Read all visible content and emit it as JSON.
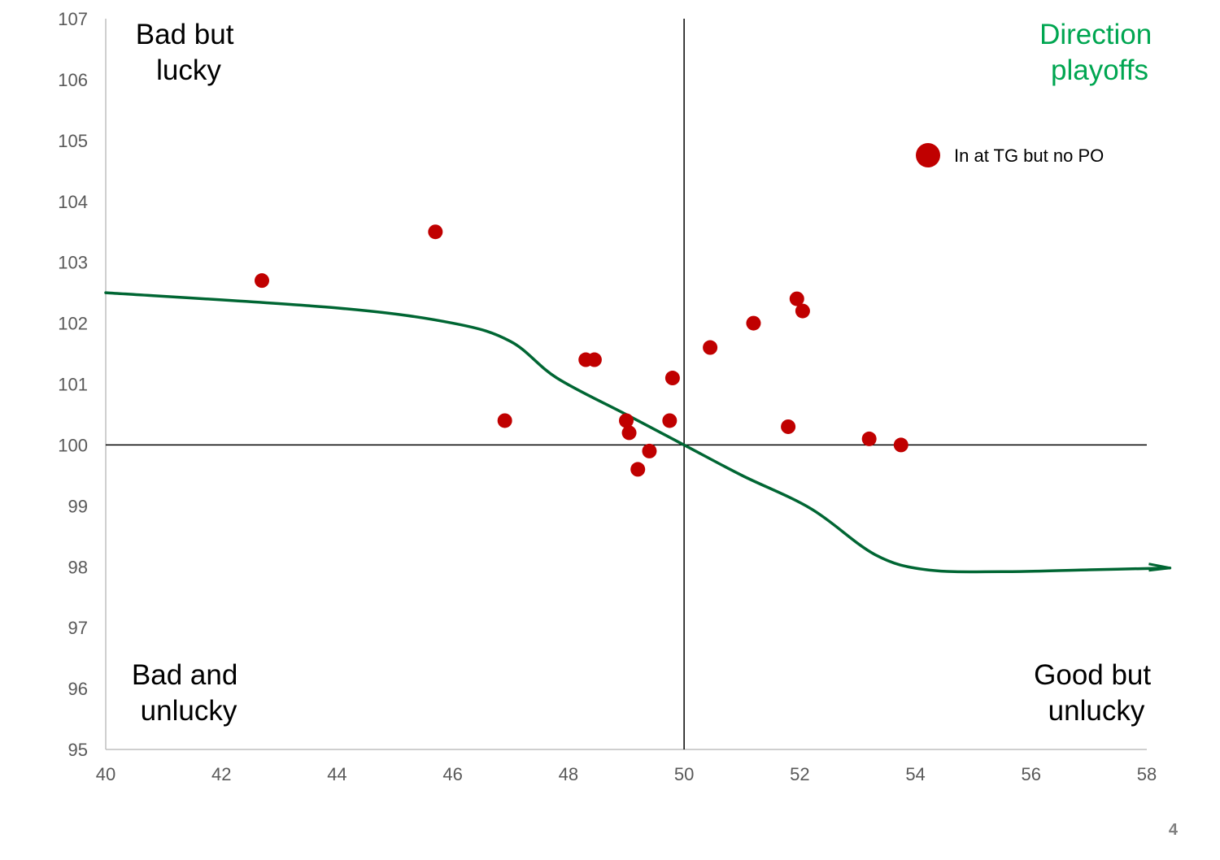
{
  "chart_data": {
    "type": "scatter",
    "title": "",
    "xlabel": "",
    "ylabel": "",
    "xlim": [
      40,
      58
    ],
    "ylim": [
      95,
      107
    ],
    "x_ticks": [
      "40",
      "42",
      "44",
      "46",
      "48",
      "50",
      "52",
      "54",
      "56",
      "58"
    ],
    "y_ticks": [
      "95",
      "96",
      "97",
      "98",
      "99",
      "100",
      "101",
      "102",
      "103",
      "104",
      "105",
      "106",
      "107"
    ],
    "reference_lines": {
      "x": 50,
      "y": 100
    },
    "grid": false,
    "legend": {
      "position": "top-right",
      "entries": [
        "In at TG but no PO"
      ]
    },
    "series": [
      {
        "name": "In at TG but no PO",
        "color": "#C00000",
        "points": [
          {
            "x": 42.7,
            "y": 102.7
          },
          {
            "x": 45.7,
            "y": 103.5
          },
          {
            "x": 46.9,
            "y": 100.4
          },
          {
            "x": 48.3,
            "y": 101.4
          },
          {
            "x": 48.45,
            "y": 101.4
          },
          {
            "x": 49.0,
            "y": 100.4
          },
          {
            "x": 49.05,
            "y": 100.2
          },
          {
            "x": 49.2,
            "y": 99.6
          },
          {
            "x": 49.4,
            "y": 99.9
          },
          {
            "x": 49.75,
            "y": 100.4
          },
          {
            "x": 49.8,
            "y": 101.1
          },
          {
            "x": 50.45,
            "y": 101.6
          },
          {
            "x": 51.2,
            "y": 102.0
          },
          {
            "x": 51.8,
            "y": 100.3
          },
          {
            "x": 51.95,
            "y": 102.4
          },
          {
            "x": 52.05,
            "y": 102.2
          },
          {
            "x": 53.2,
            "y": 100.1
          },
          {
            "x": 53.75,
            "y": 100.0
          }
        ]
      }
    ],
    "trend_curve": {
      "color": "#006633",
      "points": [
        {
          "x": 40,
          "y": 102.5
        },
        {
          "x": 44,
          "y": 102.25
        },
        {
          "x": 46,
          "y": 102.0
        },
        {
          "x": 47.0,
          "y": 101.7
        },
        {
          "x": 47.8,
          "y": 101.1
        },
        {
          "x": 49.0,
          "y": 100.5
        },
        {
          "x": 50,
          "y": 100.0
        },
        {
          "x": 51.0,
          "y": 99.5
        },
        {
          "x": 52.2,
          "y": 98.95
        },
        {
          "x": 53.3,
          "y": 98.2
        },
        {
          "x": 54.2,
          "y": 97.95
        },
        {
          "x": 55.5,
          "y": 97.92
        },
        {
          "x": 57.0,
          "y": 97.95
        },
        {
          "x": 58.4,
          "y": 97.98
        }
      ]
    },
    "annotations": {
      "top_left": [
        "Bad but",
        "lucky"
      ],
      "top_right": [
        "Direction",
        "playoffs"
      ],
      "bottom_left": [
        "Bad and",
        "unlucky"
      ],
      "bottom_right": [
        "Good but",
        "unlucky"
      ]
    }
  },
  "colors": {
    "accent_green": "#00A651",
    "marker_red": "#C00000",
    "curve_green": "#006633"
  },
  "page_number": "4"
}
